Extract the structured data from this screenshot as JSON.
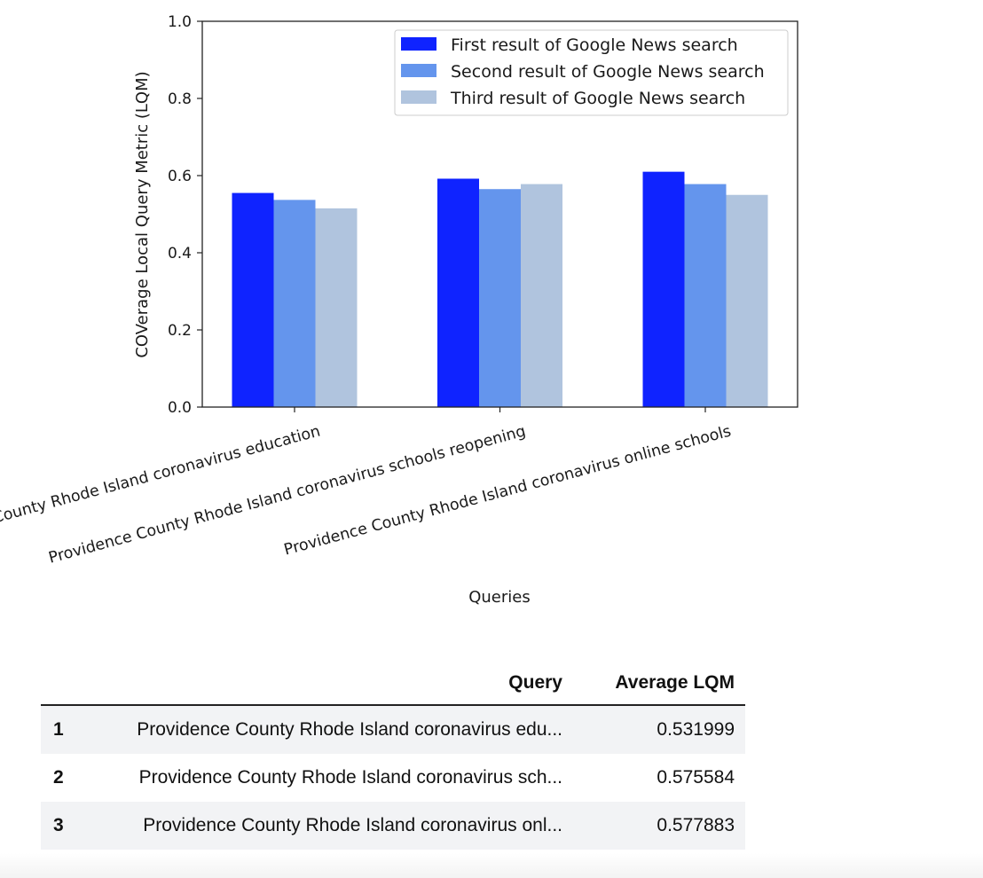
{
  "chart_data": {
    "type": "bar",
    "categories": [
      "Providence County Rhode Island coronavirus education",
      "Providence County Rhode Island coronavirus schools reopening",
      "Providence County Rhode Island coronavirus online schools"
    ],
    "series": [
      {
        "name": "First result of Google News search",
        "color": "#0f23ff",
        "values": [
          0.555,
          0.592,
          0.61
        ]
      },
      {
        "name": "Second result of Google News search",
        "color": "#6495ed",
        "values": [
          0.537,
          0.565,
          0.578
        ]
      },
      {
        "name": "Third result of Google News search",
        "color": "#b0c4de",
        "values": [
          0.515,
          0.578,
          0.55
        ]
      }
    ],
    "title": "",
    "xlabel": "Queries",
    "ylabel": "COVerage Local Query Metric (LQM)",
    "ylim": [
      0,
      1.0
    ],
    "yticks": [
      "0.0",
      "0.2",
      "0.4",
      "0.6",
      "0.8",
      "1.0"
    ],
    "legend_position": "top-right",
    "grid": false
  },
  "table": {
    "headers": {
      "index": "",
      "query": "Query",
      "avg": "Average LQM"
    },
    "rows": [
      {
        "index": "1",
        "query": "Providence County Rhode Island coronavirus edu...",
        "avg": "0.531999"
      },
      {
        "index": "2",
        "query": "Providence County Rhode Island coronavirus sch...",
        "avg": "0.575584"
      },
      {
        "index": "3",
        "query": "Providence County Rhode Island coronavirus onl...",
        "avg": "0.577883"
      }
    ]
  }
}
